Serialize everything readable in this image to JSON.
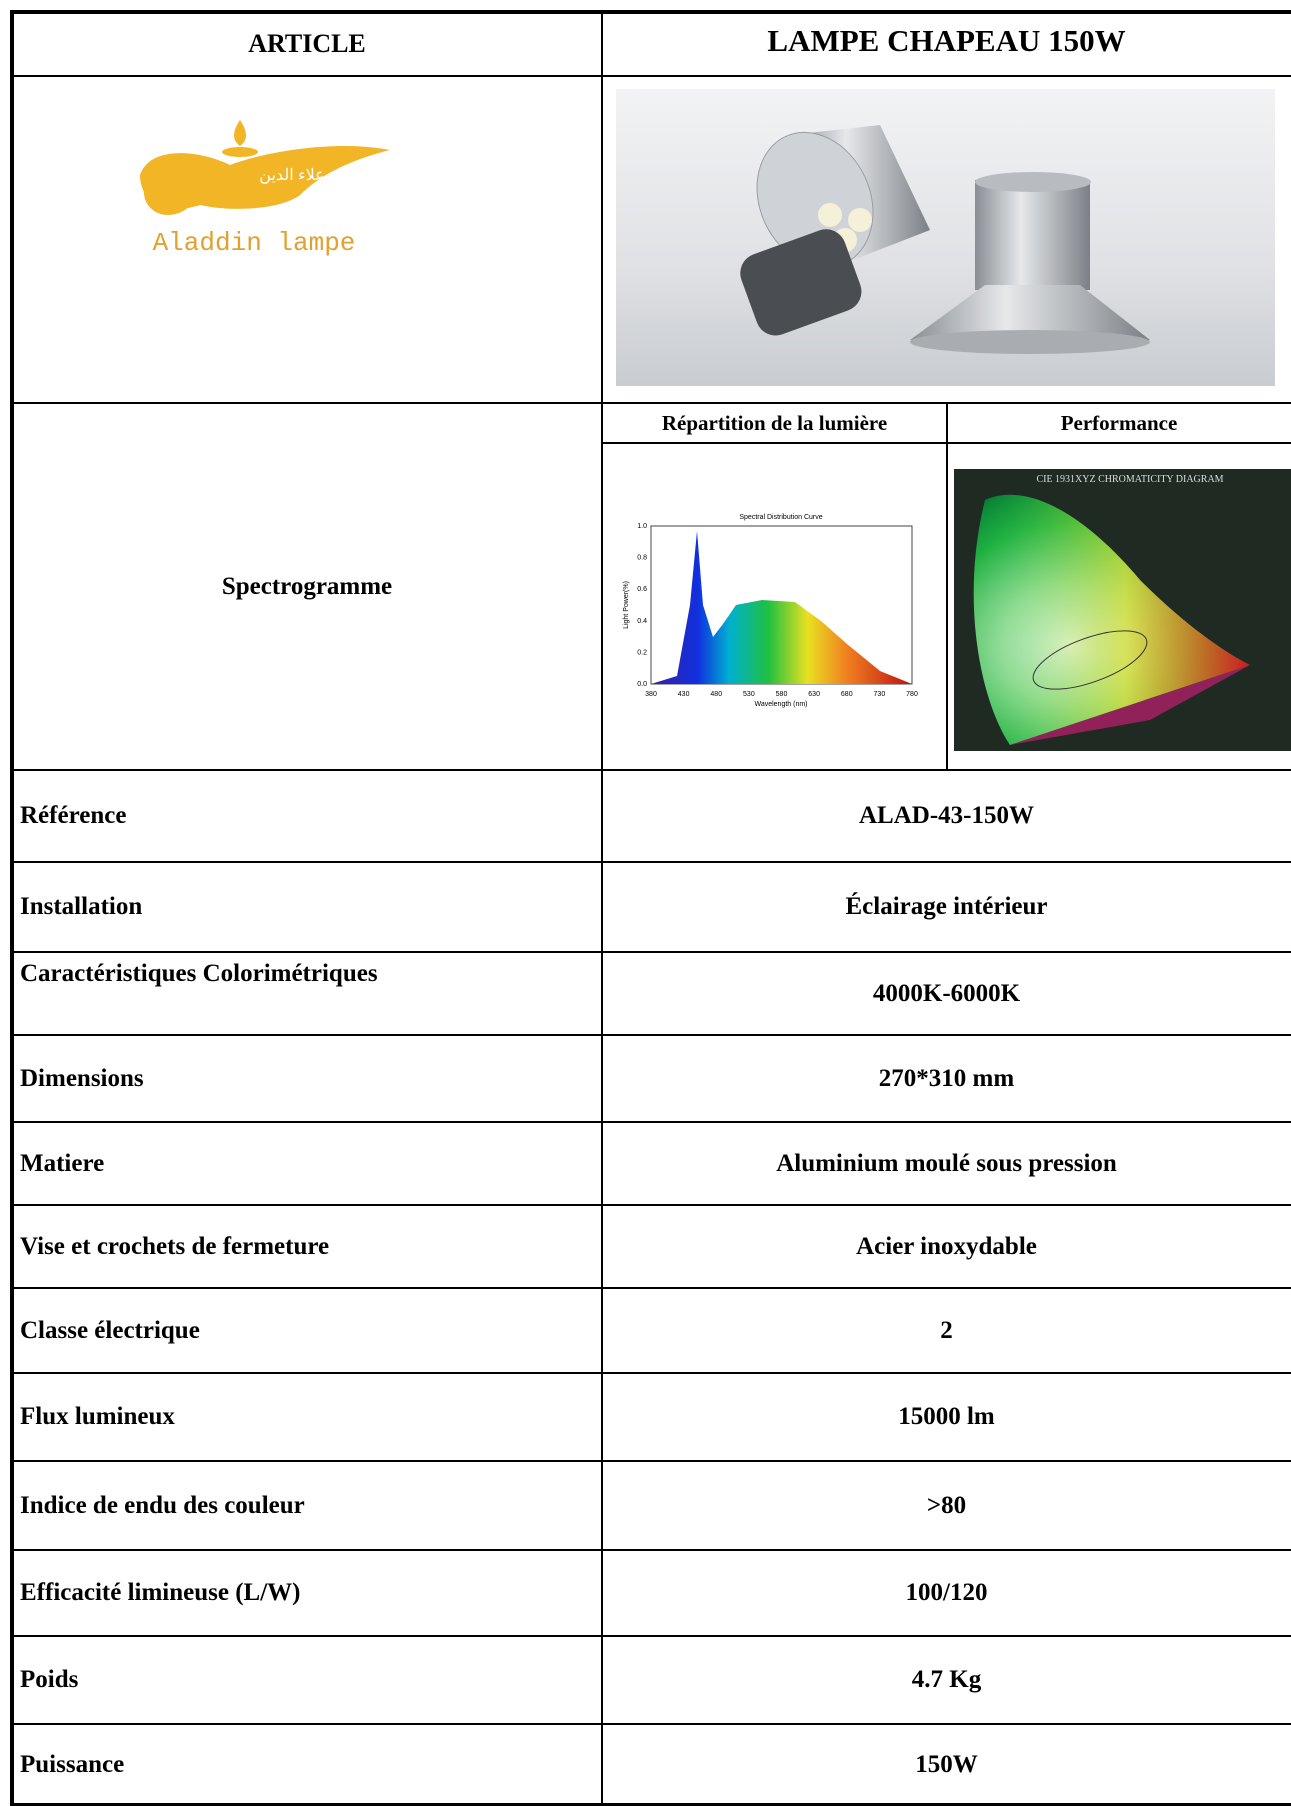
{
  "header": {
    "left": "ARTICLE",
    "right": "LAMPE CHAPEAU 150W"
  },
  "logo": {
    "arabic": "علاء الدين",
    "name": "Aladdin lampe"
  },
  "spectrogram": {
    "label": "Spectrogramme",
    "columns": [
      "Répartition de la lumière",
      "Performance"
    ],
    "curve": {
      "title": "Spectral Distribution Curve",
      "x_label": "Wavelength (nm)",
      "y_label": "Light Power(%)",
      "xticks": [
        "380",
        "430",
        "480",
        "530",
        "580",
        "630",
        "680",
        "730",
        "780"
      ],
      "yticks": [
        "0.0",
        "0.2",
        "0.4",
        "0.6",
        "0.8",
        "1.0"
      ]
    },
    "diagram_title": "CIE 1931XYZ CHROMATICITY DIAGRAM"
  },
  "rows": [
    [
      "Référence",
      "ALAD-43-150W"
    ],
    [
      "Installation",
      "Éclairage intérieur"
    ],
    [
      "Caractéristiques Colorimétriques",
      "4000K-6000K"
    ],
    [
      "Dimensions",
      "270*310 mm"
    ],
    [
      "Matiere",
      "Aluminium moulé sous pression"
    ],
    [
      "Vise et crochets de fermeture",
      "Acier inoxydable"
    ],
    [
      "Classe électrique",
      "2"
    ],
    [
      "Flux lumineux",
      "15000 lm"
    ],
    [
      "Indice de endu des couleur",
      ">80"
    ],
    [
      "Efficacité limineuse (L/W)",
      "100/120"
    ],
    [
      "Poids",
      "4.7 Kg"
    ],
    [
      "Puissance",
      "150W"
    ]
  ]
}
